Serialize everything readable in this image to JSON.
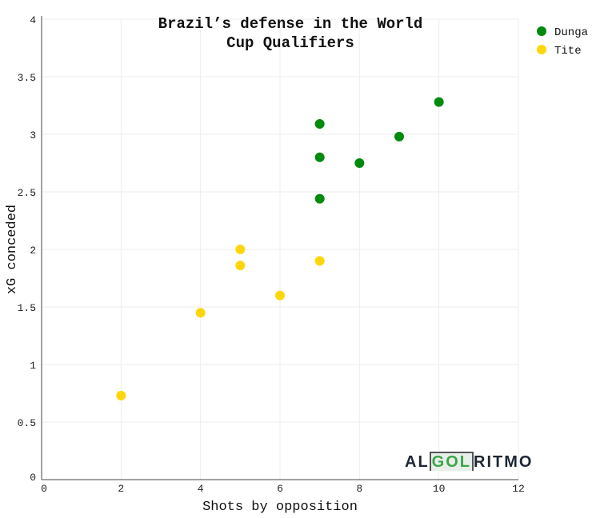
{
  "chart_data": {
    "type": "scatter",
    "title": [
      "Brazil’s defense in the World",
      "Cup Qualifiers"
    ],
    "xlabel": "Shots by opposition",
    "ylabel": "xG conceded",
    "xlim": [
      0,
      12
    ],
    "ylim": [
      0,
      4
    ],
    "xticks": [
      0,
      2,
      4,
      6,
      8,
      10,
      12
    ],
    "yticks": [
      0,
      0.5,
      1,
      1.5,
      2,
      2.5,
      3,
      3.5,
      4
    ],
    "grid": true,
    "legend_position": "top-right",
    "series": [
      {
        "name": "Dunga",
        "color": "#008a0e",
        "points": [
          [
            7,
            3.09
          ],
          [
            7,
            2.8
          ],
          [
            7,
            2.44
          ],
          [
            8,
            2.75
          ],
          [
            9,
            2.98
          ],
          [
            10,
            3.28
          ]
        ]
      },
      {
        "name": "Tite",
        "color": "#ffd60a",
        "points": [
          [
            2,
            0.73
          ],
          [
            4,
            1.45
          ],
          [
            5,
            2.0
          ],
          [
            5,
            1.86
          ],
          [
            6,
            1.6
          ],
          [
            7,
            1.9
          ]
        ]
      }
    ]
  },
  "logo": {
    "part1": "AL",
    "part2": "GOL",
    "part3": "RITMO"
  }
}
